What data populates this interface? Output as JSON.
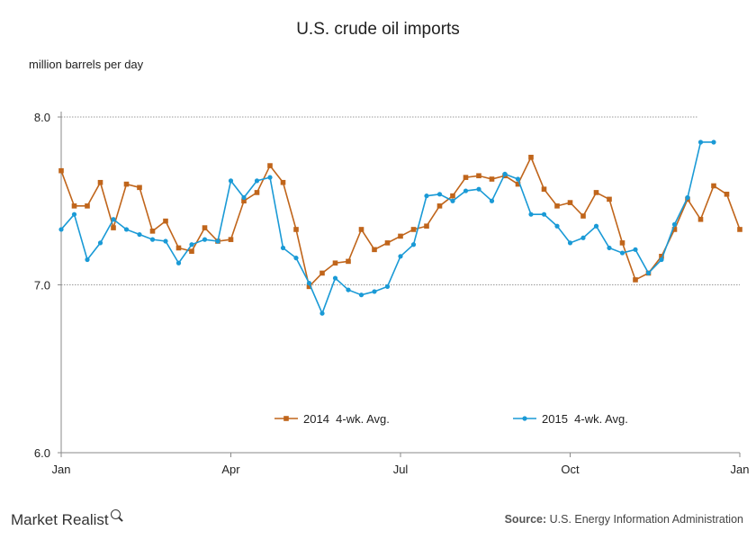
{
  "chart_data": {
    "type": "line",
    "title": "U.S. crude oil imports",
    "ylabel": "million barrels per day",
    "ylim": [
      6.0,
      8.0
    ],
    "yticks": [
      "6.0",
      "7.0",
      "8.0"
    ],
    "x_ticks": [
      "Jan",
      "Apr",
      "Jul",
      "Oct",
      "Jan"
    ],
    "grid": "horizontal dotted at 7.0 and 8.0",
    "legend_position": "bottom-center",
    "series": [
      {
        "name": "2014  4-wk. Avg.",
        "color": "#c0651b",
        "marker": "square",
        "values": [
          7.68,
          7.47,
          7.47,
          7.61,
          7.34,
          7.6,
          7.58,
          7.32,
          7.38,
          7.22,
          7.2,
          7.34,
          7.26,
          7.27,
          7.5,
          7.55,
          7.71,
          7.61,
          7.33,
          6.99,
          7.07,
          7.13,
          7.14,
          7.33,
          7.21,
          7.25,
          7.29,
          7.33,
          7.35,
          7.47,
          7.53,
          7.64,
          7.65,
          7.63,
          7.65,
          7.6,
          7.76,
          7.57,
          7.47,
          7.49,
          7.41,
          7.55,
          7.51,
          7.25,
          7.03,
          7.07,
          7.17,
          7.33,
          7.51,
          7.39,
          7.59,
          7.54,
          7.33
        ]
      },
      {
        "name": "2015  4-wk. Avg.",
        "color": "#1a9ad6",
        "marker": "diamond",
        "values": [
          7.33,
          7.42,
          7.15,
          7.25,
          7.39,
          7.33,
          7.3,
          7.27,
          7.26,
          7.13,
          7.24,
          7.27,
          7.26,
          7.62,
          7.52,
          7.62,
          7.64,
          7.22,
          7.16,
          7.01,
          6.83,
          7.04,
          6.97,
          6.94,
          6.96,
          6.99,
          7.17,
          7.24,
          7.53,
          7.54,
          7.5,
          7.56,
          7.57,
          7.5,
          7.66,
          7.63,
          7.42,
          7.42,
          7.35,
          7.25,
          7.28,
          7.35,
          7.22,
          7.19,
          7.21,
          7.07,
          7.15,
          7.36,
          7.52,
          7.85,
          7.85
        ]
      }
    ]
  },
  "footer": {
    "logo": "Market Realist",
    "source_label": "Source:",
    "source_text": " U.S. Energy Information Administration"
  }
}
